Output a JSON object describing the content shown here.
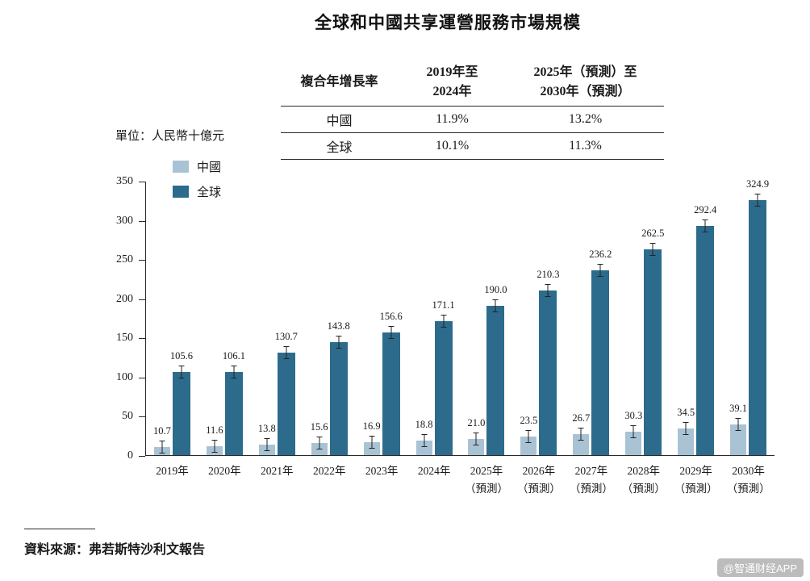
{
  "title": "全球和中國共享運營服務市場規模",
  "unit_label": "單位：人民幣十億元",
  "table": {
    "corner_header": "複合年增長率",
    "col_headers": [
      "2019年至\n2024年",
      "2025年（預測）至\n2030年（預測）"
    ],
    "rows": [
      {
        "label": "中國",
        "values": [
          "11.9%",
          "13.2%"
        ]
      },
      {
        "label": "全球",
        "values": [
          "10.1%",
          "11.3%"
        ]
      }
    ]
  },
  "legend": [
    {
      "label": "中國",
      "color": "#a9c2d4"
    },
    {
      "label": "全球",
      "color": "#2d6b8c"
    }
  ],
  "chart_data": {
    "type": "bar",
    "title": "全球和中國共享運營服務市場規模",
    "ylabel": "人民幣十億元",
    "ylim": [
      0,
      350
    ],
    "yticks": [
      0,
      50,
      100,
      150,
      200,
      250,
      300,
      350
    ],
    "grid": false,
    "error_bars": true,
    "legend_position": "top-left",
    "categories": [
      "2019年",
      "2020年",
      "2021年",
      "2022年",
      "2023年",
      "2024年",
      "2025年\n（預測）",
      "2026年\n（預測）",
      "2027年\n（預測）",
      "2028年\n（預測）",
      "2029年\n（預測）",
      "2030年\n（預測）"
    ],
    "series": [
      {
        "name": "中國",
        "color": "#a9c2d4",
        "values": [
          10.7,
          11.6,
          13.8,
          15.6,
          16.9,
          18.8,
          21.0,
          23.5,
          26.7,
          30.3,
          34.5,
          39.1
        ]
      },
      {
        "name": "全球",
        "color": "#2d6b8c",
        "values": [
          105.6,
          106.1,
          130.7,
          143.8,
          156.6,
          171.1,
          190.0,
          210.3,
          236.2,
          262.5,
          292.4,
          324.9
        ]
      }
    ]
  },
  "source": "資料來源：弗若斯特沙利文報告",
  "watermark": "@智通财经APP"
}
